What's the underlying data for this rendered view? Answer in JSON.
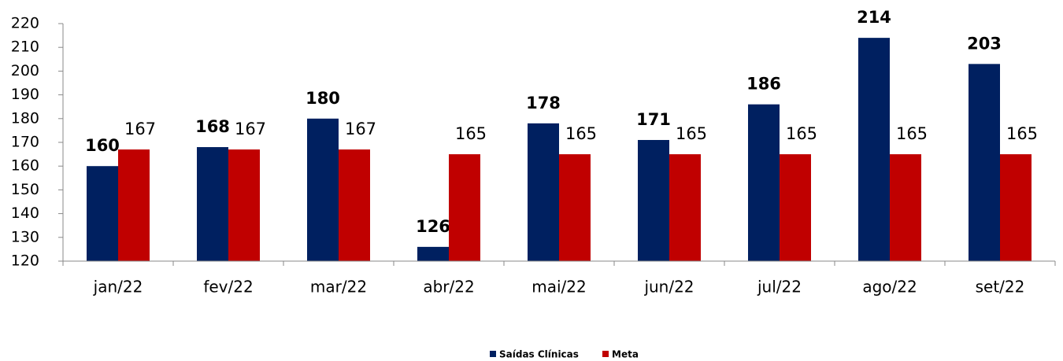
{
  "chart_data": {
    "type": "bar",
    "categories": [
      "jan/22",
      "fev/22",
      "mar/22",
      "abr/22",
      "mai/22",
      "jun/22",
      "jul/22",
      "ago/22",
      "set/22"
    ],
    "series": [
      {
        "name": "Saídas Clínicas",
        "color": "#002060",
        "values": [
          160,
          168,
          180,
          126,
          178,
          171,
          186,
          214,
          203
        ]
      },
      {
        "name": "Meta",
        "color": "#c00000",
        "values": [
          167,
          167,
          167,
          165,
          165,
          165,
          165,
          165,
          165
        ]
      }
    ],
    "ylim": [
      120,
      220
    ],
    "yticks": [
      120,
      130,
      140,
      150,
      160,
      170,
      180,
      190,
      200,
      210,
      220
    ],
    "grid": false,
    "legend": "bottom"
  }
}
